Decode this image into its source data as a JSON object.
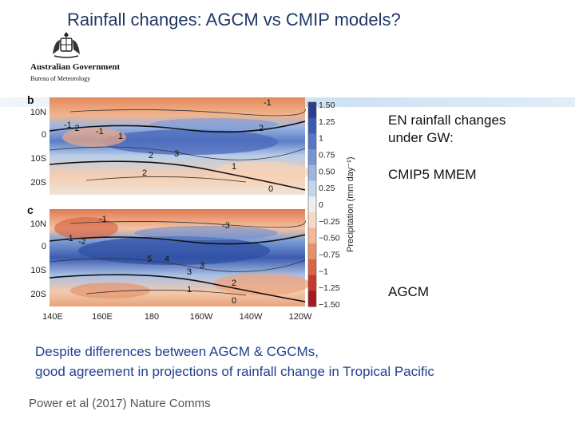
{
  "slide": {
    "title": "Rainfall changes: AGCM vs CMIP models?",
    "logo": {
      "line1": "Australian Government",
      "line2": "Bureau of Meteorology"
    },
    "side_text": {
      "heading_line1": "EN rainfall changes",
      "heading_line2": "under GW:",
      "label_top": "CMIP5 MMEM",
      "label_bottom": "AGCM"
    },
    "note_line1": "Despite differences between AGCM & CGCMs,",
    "note_line2": "good agreement in projections of rainfall change in Tropical Pacific",
    "citation": "Power et al (2017) Nature Comms"
  },
  "figure": {
    "panel_letters": [
      "b",
      "c"
    ],
    "lat_labels": [
      "10N",
      "0",
      "10S",
      "20S"
    ],
    "lon_labels": [
      "140E",
      "160E",
      "180",
      "160W",
      "140W",
      "120W"
    ],
    "colorbar_ticks": [
      "1.50",
      "1.25",
      "1",
      "0.75",
      "0.50",
      "0.25",
      "0",
      "−0.25",
      "−0.50",
      "−0.75",
      "−1",
      "−1.25",
      "−1.50"
    ],
    "colorbar_colors": [
      "#2c3d8f",
      "#3a5bb0",
      "#5578c6",
      "#7696d2",
      "#9db6e0",
      "#c4d6ee",
      "#eeeeea",
      "#f6d9c4",
      "#f3b996",
      "#eb9069",
      "#dd6444",
      "#c9372e",
      "#a8191f"
    ],
    "colorbar_label": "Precipitation (mm day⁻¹)",
    "contour_labels_b": [
      "-1",
      "-2",
      "-1",
      "2",
      "1",
      "2",
      "3",
      "2",
      "1",
      "0",
      "-1"
    ],
    "contour_labels_c": [
      "-1",
      "-2",
      "-3",
      "3",
      "4",
      "5",
      "3",
      "2",
      "1",
      "0",
      "-1"
    ]
  }
}
